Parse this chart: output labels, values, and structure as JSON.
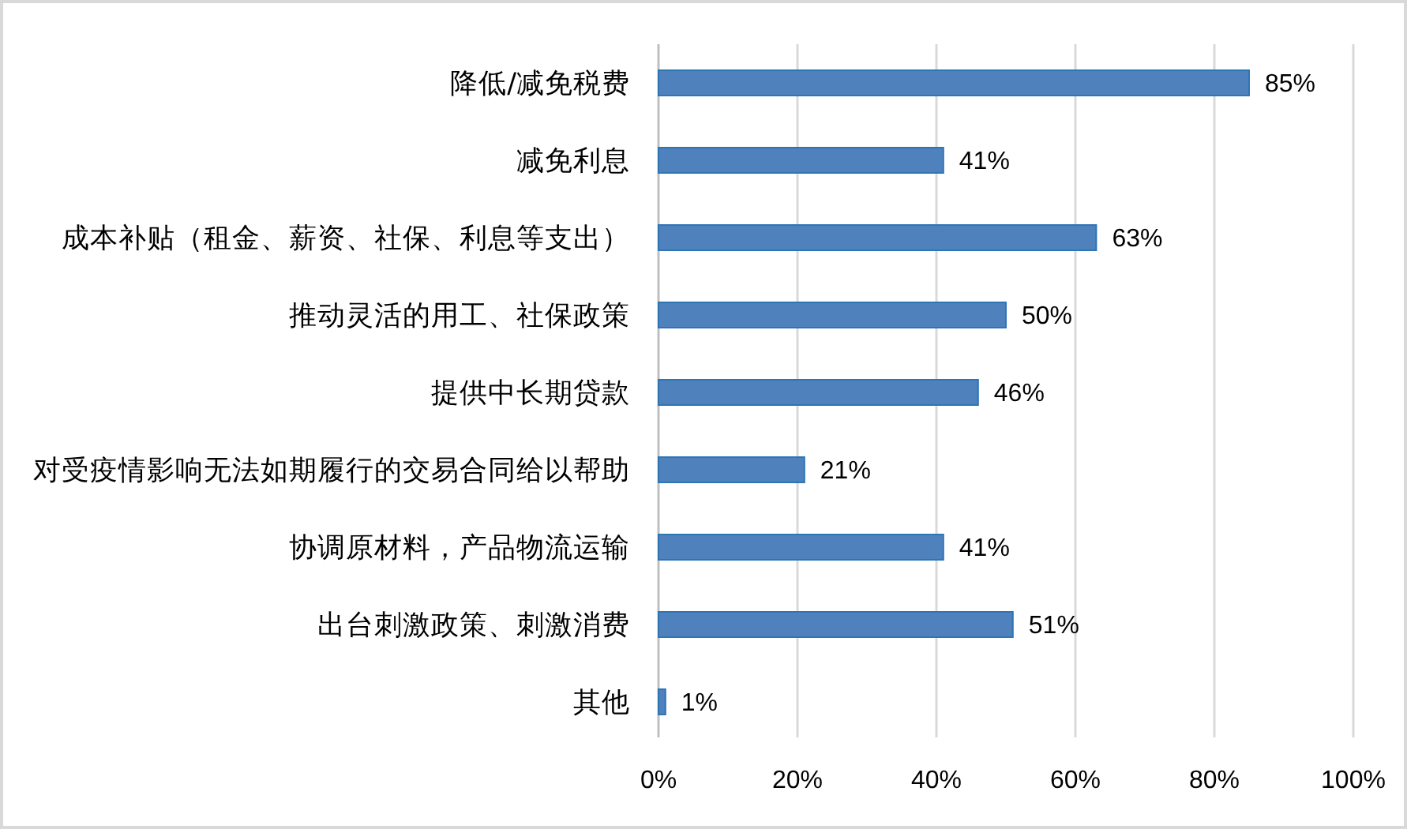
{
  "chart_data": {
    "type": "bar",
    "orientation": "horizontal",
    "categories": [
      "降低/减免税费",
      "减免利息",
      "成本补贴（租金、薪资、社保、利息等支出）",
      "推动灵活的用工、社保政策",
      "提供中长期贷款",
      "对受疫情影响无法如期履行的交易合同给以帮助",
      "协调原材料，产品物流运输",
      "出台刺激政策、刺激消费",
      "其他"
    ],
    "values": [
      85,
      41,
      63,
      50,
      46,
      21,
      41,
      51,
      1
    ],
    "color": "#4f81bd",
    "value_labels": [
      "85%",
      "41%",
      "63%",
      "50%",
      "46%",
      "21%",
      "41%",
      "51%",
      "1%"
    ],
    "xlim": [
      0,
      100
    ],
    "xticks": [
      {
        "value": 0,
        "label": "0%"
      },
      {
        "value": 20,
        "label": "20%"
      },
      {
        "value": 40,
        "label": "40%"
      },
      {
        "value": 60,
        "label": "60%"
      },
      {
        "value": 80,
        "label": "80%"
      },
      {
        "value": 100,
        "label": "100%"
      }
    ],
    "grid": "x"
  }
}
